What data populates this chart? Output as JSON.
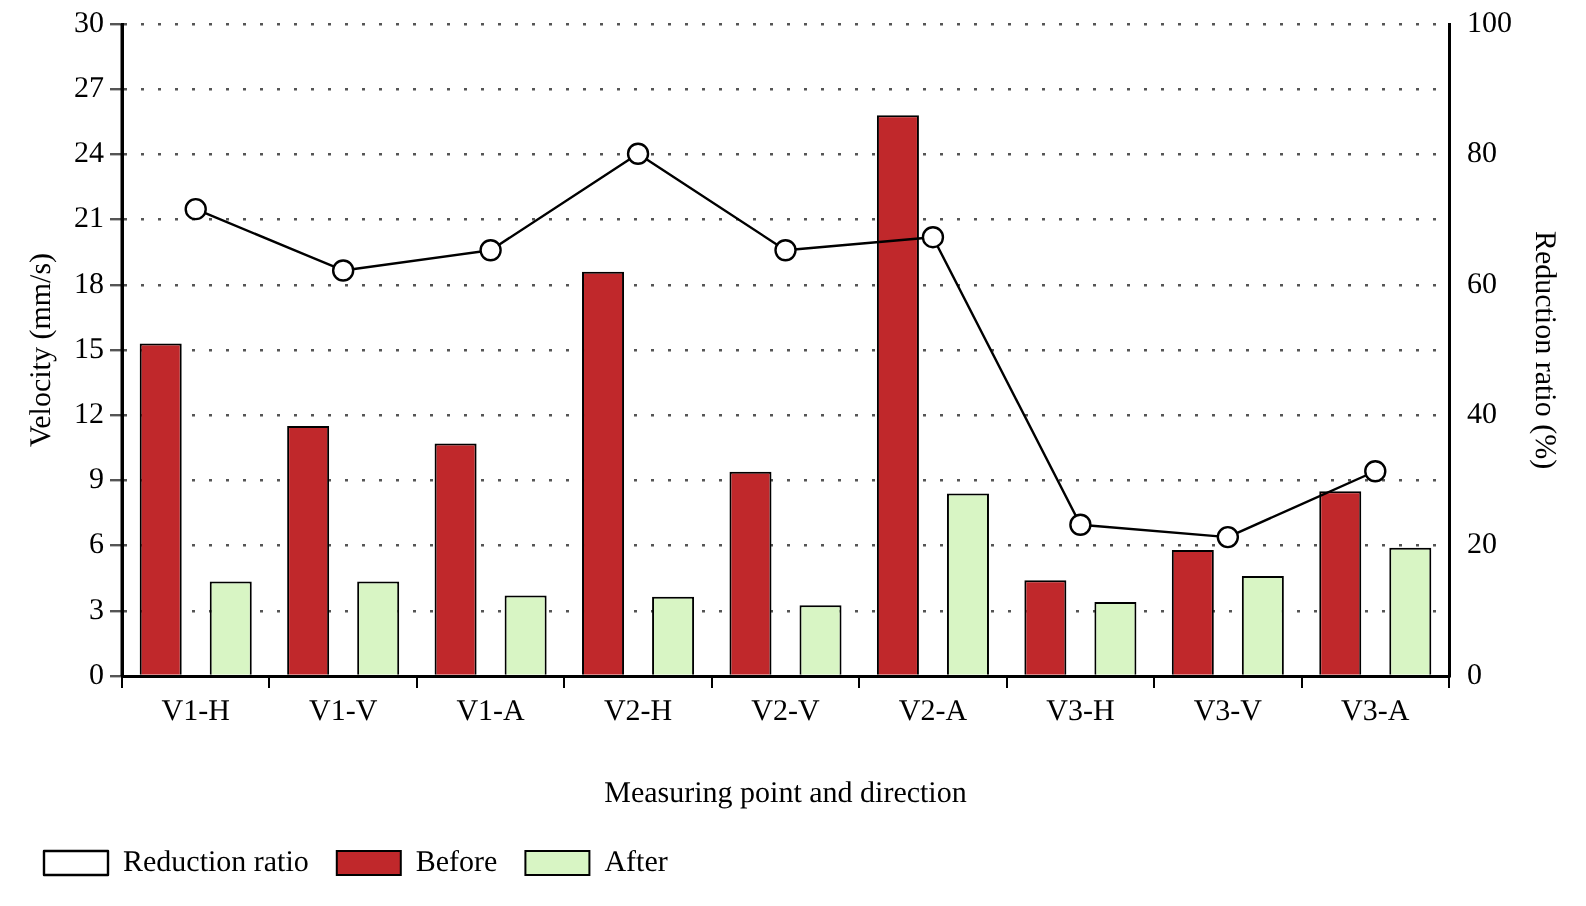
{
  "chart_data": {
    "type": "bar",
    "xlabel": "Measuring point and direction",
    "ylabel": "Velocity (mm/s)",
    "y2label": "Reduction ratio (%)",
    "categories": [
      "V1-H",
      "V1-V",
      "V1-A",
      "V2-H",
      "V2-V",
      "V2-A",
      "V3-H",
      "V3-V",
      "V3-A"
    ],
    "series": [
      {
        "name": "Before",
        "color": "#c0282b",
        "values": [
          15.3,
          11.5,
          10.7,
          18.6,
          9.4,
          25.8,
          4.4,
          5.8,
          8.5
        ]
      },
      {
        "name": "After",
        "color": "#d8f5c4",
        "values": [
          4.35,
          4.35,
          3.7,
          3.65,
          3.25,
          8.4,
          3.4,
          4.6,
          5.9
        ]
      },
      {
        "name": "Reduction ratio",
        "type": "line",
        "axis": "y2",
        "color": "#000000",
        "marker": "circle",
        "values": [
          71.6,
          62.2,
          65.3,
          80.1,
          65.3,
          67.3,
          23.2,
          21.3,
          31.4
        ]
      }
    ],
    "ylim": [
      0,
      30
    ],
    "yticks": [
      0,
      3,
      6,
      9,
      12,
      15,
      18,
      21,
      24,
      27,
      30
    ],
    "y2lim": [
      0,
      100
    ],
    "y2ticks": [
      0,
      20,
      40,
      60,
      80,
      100
    ],
    "grid": "y",
    "legend": "bottom left"
  }
}
